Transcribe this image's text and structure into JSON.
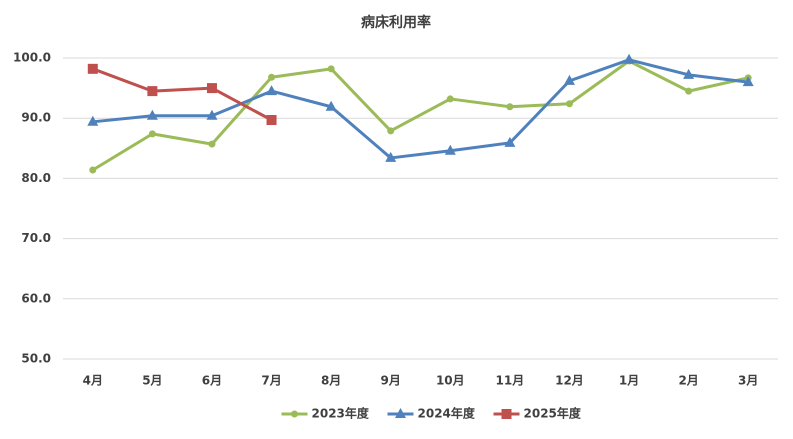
{
  "chart_data": {
    "type": "line",
    "title": "病床利用率",
    "categories": [
      "4月",
      "5月",
      "6月",
      "7月",
      "8月",
      "9月",
      "10月",
      "11月",
      "12月",
      "1月",
      "2月",
      "3月"
    ],
    "series": [
      {
        "name": "2023年度",
        "color": "#9bbb59",
        "marker": "circle",
        "values": [
          81.4,
          87.4,
          85.7,
          96.8,
          98.2,
          87.9,
          93.2,
          91.9,
          92.4,
          99.5,
          94.5,
          96.7
        ]
      },
      {
        "name": "2024年度",
        "color": "#4f81bd",
        "marker": "triangle",
        "values": [
          89.4,
          90.4,
          90.4,
          94.5,
          91.9,
          83.4,
          84.6,
          85.9,
          96.2,
          99.7,
          97.2,
          96.0
        ]
      },
      {
        "name": "2025年度",
        "color": "#c0504d",
        "marker": "square",
        "values": [
          98.2,
          94.5,
          95.0,
          89.7,
          null,
          null,
          null,
          null,
          null,
          null,
          null,
          null
        ]
      }
    ],
    "ylim": [
      50,
      100
    ],
    "yticks": [
      {
        "value": 50,
        "label": "50.0"
      },
      {
        "value": 60,
        "label": "60.0"
      },
      {
        "value": 70,
        "label": "70.0"
      },
      {
        "value": 80,
        "label": "80.0"
      },
      {
        "value": 90,
        "label": "90.0"
      },
      {
        "value": 100,
        "label": "100.0"
      }
    ],
    "grid": true,
    "legend": "bottom"
  }
}
